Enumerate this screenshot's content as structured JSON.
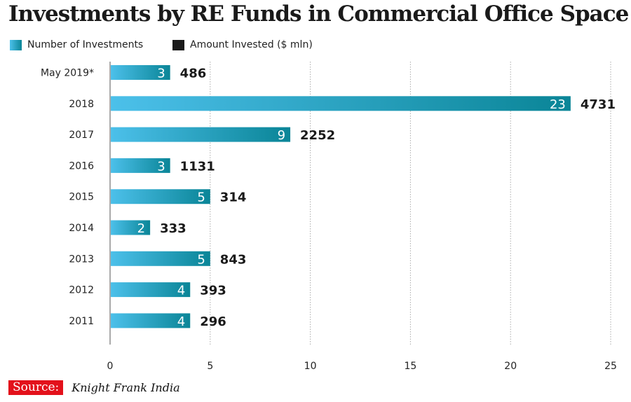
{
  "title": "Investments by RE Funds in Commercial Office Space",
  "legend": [
    {
      "label": "Number of Investments",
      "color": "#1e9fc4"
    },
    {
      "label": "Amount Invested ($ mln)",
      "color": "#1a1a1a"
    }
  ],
  "source": {
    "label": "Source:",
    "text": "Knight Frank India"
  },
  "chart_data": {
    "type": "bar",
    "orientation": "horizontal",
    "categories": [
      "May 2019*",
      "2018",
      "2017",
      "2016",
      "2015",
      "2014",
      "2013",
      "2012",
      "2011"
    ],
    "series": [
      {
        "name": "Number of Investments",
        "values": [
          3,
          23,
          9,
          3,
          5,
          2,
          5,
          4,
          4
        ]
      },
      {
        "name": "Amount Invested ($ mln)",
        "values": [
          486,
          4731,
          2252,
          1131,
          314,
          333,
          843,
          393,
          296
        ]
      }
    ],
    "xlim": [
      0,
      25
    ],
    "xticks": [
      0,
      5,
      10,
      15,
      20,
      25
    ],
    "grid": true,
    "legend_position": "top-left",
    "colors": {
      "bar_start": "#4cc0ea",
      "bar_end": "#0a8597",
      "amount_label": "#1a1a1a"
    }
  }
}
